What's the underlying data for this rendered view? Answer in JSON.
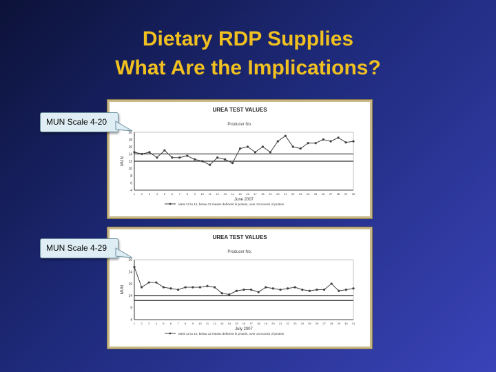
{
  "slide": {
    "title_line1": "Dietary RDP Supplies",
    "title_line2": "What Are the Implications?",
    "callouts": [
      "MUN Scale 4-20",
      "MUN Scale 4-29"
    ],
    "colors": {
      "title": "#f0c020",
      "background_start": "#0c1238",
      "background_end": "#3a43b8",
      "series": "#404040",
      "reference_line": "#000000"
    }
  },
  "chart_data": [
    {
      "type": "line",
      "title": "UREA TEST VALUES",
      "subtitle": "Producer No.",
      "xlabel": "June 2007",
      "ylabel": "MUN",
      "ylim": [
        4,
        20
      ],
      "yticks": [
        4,
        6,
        8,
        10,
        12,
        14,
        16,
        18,
        20
      ],
      "x": [
        1,
        2,
        3,
        4,
        5,
        6,
        7,
        8,
        9,
        10,
        11,
        12,
        13,
        14,
        15,
        16,
        17,
        18,
        19,
        20,
        21,
        22,
        23,
        24,
        25,
        26,
        27,
        28,
        29,
        30
      ],
      "series": [
        {
          "name": "",
          "values": [
            14.5,
            14,
            14.5,
            13,
            15,
            13,
            13,
            13.5,
            12.5,
            12,
            11,
            13,
            12.5,
            11.5,
            15.5,
            16,
            14.5,
            16,
            14.5,
            17.5,
            19,
            16,
            15.5,
            17,
            17,
            18,
            17.5,
            18.5,
            17.2,
            17.5
          ]
        }
      ],
      "reference_lines": [
        12,
        14
      ],
      "legend": "Ideal 12 to 14, below 12 means deficient in protein, over 14 excess of protein",
      "legend_position": "bottom",
      "grid": false
    },
    {
      "type": "line",
      "title": "UREA TEST VALUES",
      "subtitle": "Producer No.",
      "xlabel": "July 2007",
      "ylabel": "MUN",
      "ylim": [
        4,
        29
      ],
      "yticks": [
        4,
        9,
        14,
        19,
        24,
        29
      ],
      "x": [
        1,
        2,
        3,
        4,
        5,
        6,
        7,
        8,
        9,
        10,
        11,
        12,
        13,
        14,
        15,
        16,
        17,
        18,
        19,
        20,
        21,
        22,
        23,
        24,
        25,
        26,
        27,
        28,
        29,
        30,
        31
      ],
      "series": [
        {
          "name": "",
          "values": [
            26,
            17.5,
            19.5,
            19.5,
            17.5,
            17,
            16.5,
            17.5,
            17.5,
            17.5,
            18,
            17.5,
            15,
            14.5,
            16,
            16.5,
            16.5,
            15.5,
            17.5,
            17,
            16.5,
            17,
            17.5,
            16.5,
            16,
            16.5,
            16.5,
            19,
            16,
            16.5,
            17
          ]
        }
      ],
      "reference_lines": [
        12,
        14
      ],
      "legend": "Ideal 12 to 14, below 12 means deficient in protein, over 14 excess of protein",
      "legend_position": "bottom",
      "grid": false
    }
  ]
}
